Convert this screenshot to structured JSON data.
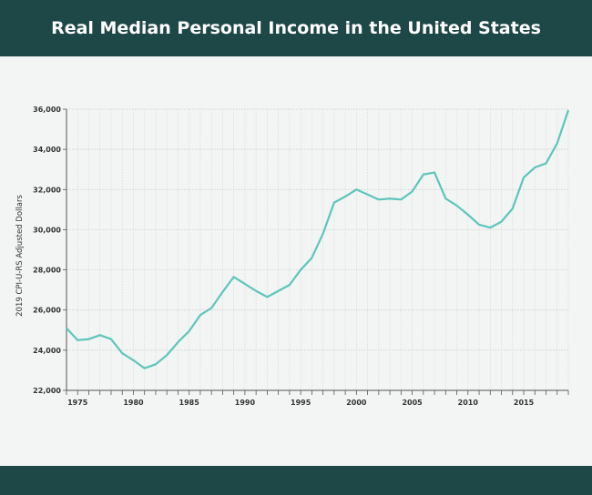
{
  "chart_data": {
    "type": "line",
    "title": "Real Median Personal Income in the United States",
    "xlabel": "",
    "ylabel": "2019 CPI-U-RS Adjusted Dollars",
    "xlim": [
      1974,
      2019
    ],
    "ylim": [
      22000,
      36000
    ],
    "yticks": [
      22000,
      24000,
      26000,
      28000,
      30000,
      32000,
      34000,
      36000
    ],
    "ytick_labels": [
      "22,000",
      "24,000",
      "26,000",
      "28,000",
      "30,000",
      "32,000",
      "34,000",
      "36,000"
    ],
    "xticks": [
      1975,
      1980,
      1985,
      1990,
      1995,
      2000,
      2005,
      2010,
      2015
    ],
    "xtick_labels": [
      "1975",
      "1980",
      "1985",
      "1990",
      "1995",
      "2000",
      "2005",
      "2010",
      "2015"
    ],
    "grid": true,
    "line_color": "#5cc6bb",
    "x": [
      1974,
      1975,
      1976,
      1977,
      1978,
      1979,
      1980,
      1981,
      1982,
      1983,
      1984,
      1985,
      1986,
      1987,
      1988,
      1989,
      1990,
      1991,
      1992,
      1993,
      1994,
      1995,
      1996,
      1997,
      1998,
      1999,
      2000,
      2001,
      2002,
      2003,
      2004,
      2005,
      2006,
      2007,
      2008,
      2009,
      2010,
      2011,
      2012,
      2013,
      2014,
      2015,
      2016,
      2017,
      2018,
      2019
    ],
    "y": [
      25100,
      24500,
      24550,
      24750,
      24550,
      23850,
      23500,
      23100,
      23300,
      23750,
      24400,
      24950,
      25750,
      26100,
      26900,
      27650,
      27300,
      26950,
      26650,
      26950,
      27250,
      28000,
      28600,
      29800,
      31350,
      31650,
      32000,
      31750,
      31500,
      31550,
      31500,
      31900,
      32750,
      32850,
      31550,
      31200,
      30750,
      30250,
      30100,
      30400,
      31050,
      32600,
      33100,
      33300,
      34300,
      35950
    ]
  }
}
